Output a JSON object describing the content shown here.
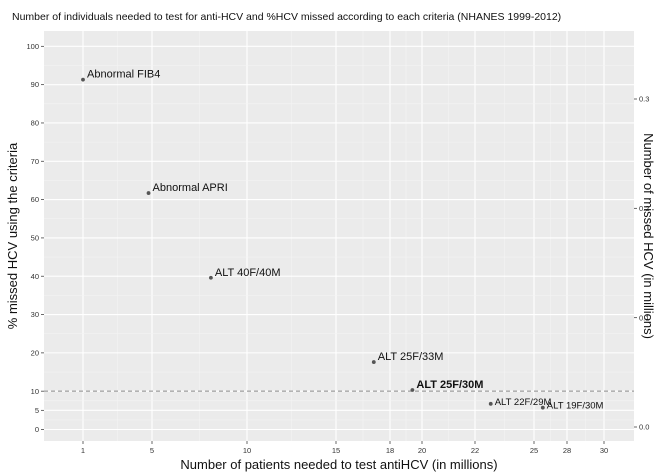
{
  "chart_data": {
    "type": "scatter",
    "title": "Number of individuals needed to test for anti-HCV and %HCV missed according to each criteria (NHANES 1999-2012)",
    "xlabel": "Number of patients needed to test antiHCV (in millions)",
    "ylabel": "% missed HCV using the criteria",
    "y2label": "Number of missed HCV (in millions)",
    "x_ticks": [
      "1",
      "5",
      "10",
      "15",
      "18",
      "20",
      "22",
      "25",
      "28",
      "30"
    ],
    "y_ticks": [
      "0",
      "5",
      "10",
      "20",
      "30",
      "40",
      "50",
      "60",
      "70",
      "80",
      "90",
      "100"
    ],
    "y2_ticks": [
      "0.0",
      "0.1",
      "0.2",
      "0.3"
    ],
    "ylim": [
      -3,
      104
    ],
    "y2_range": [
      0.0,
      0.3
    ],
    "reference_line": {
      "y": 10,
      "style": "dashed"
    },
    "grid": true,
    "points": [
      {
        "label": "Abnormal FIB4",
        "x": 1,
        "y": 91.3,
        "bold": false
      },
      {
        "label": "Abnormal APRI",
        "x": 4.8,
        "y": 61.7,
        "bold": false
      },
      {
        "label": "ALT 40F/40M",
        "x": 8.1,
        "y": 39.6,
        "bold": false
      },
      {
        "label": "ALT 25F/33M",
        "x": 17.1,
        "y": 17.6,
        "bold": false
      },
      {
        "label": "ALT 25F/30M",
        "x": 19.4,
        "y": 10.3,
        "bold": true
      },
      {
        "label": "ALT 22F/29M",
        "x": 22.8,
        "y": 6.7,
        "bold": false
      },
      {
        "label": "ALT 19F/30M",
        "x": 25.8,
        "y": 5.7,
        "bold": false
      }
    ]
  }
}
